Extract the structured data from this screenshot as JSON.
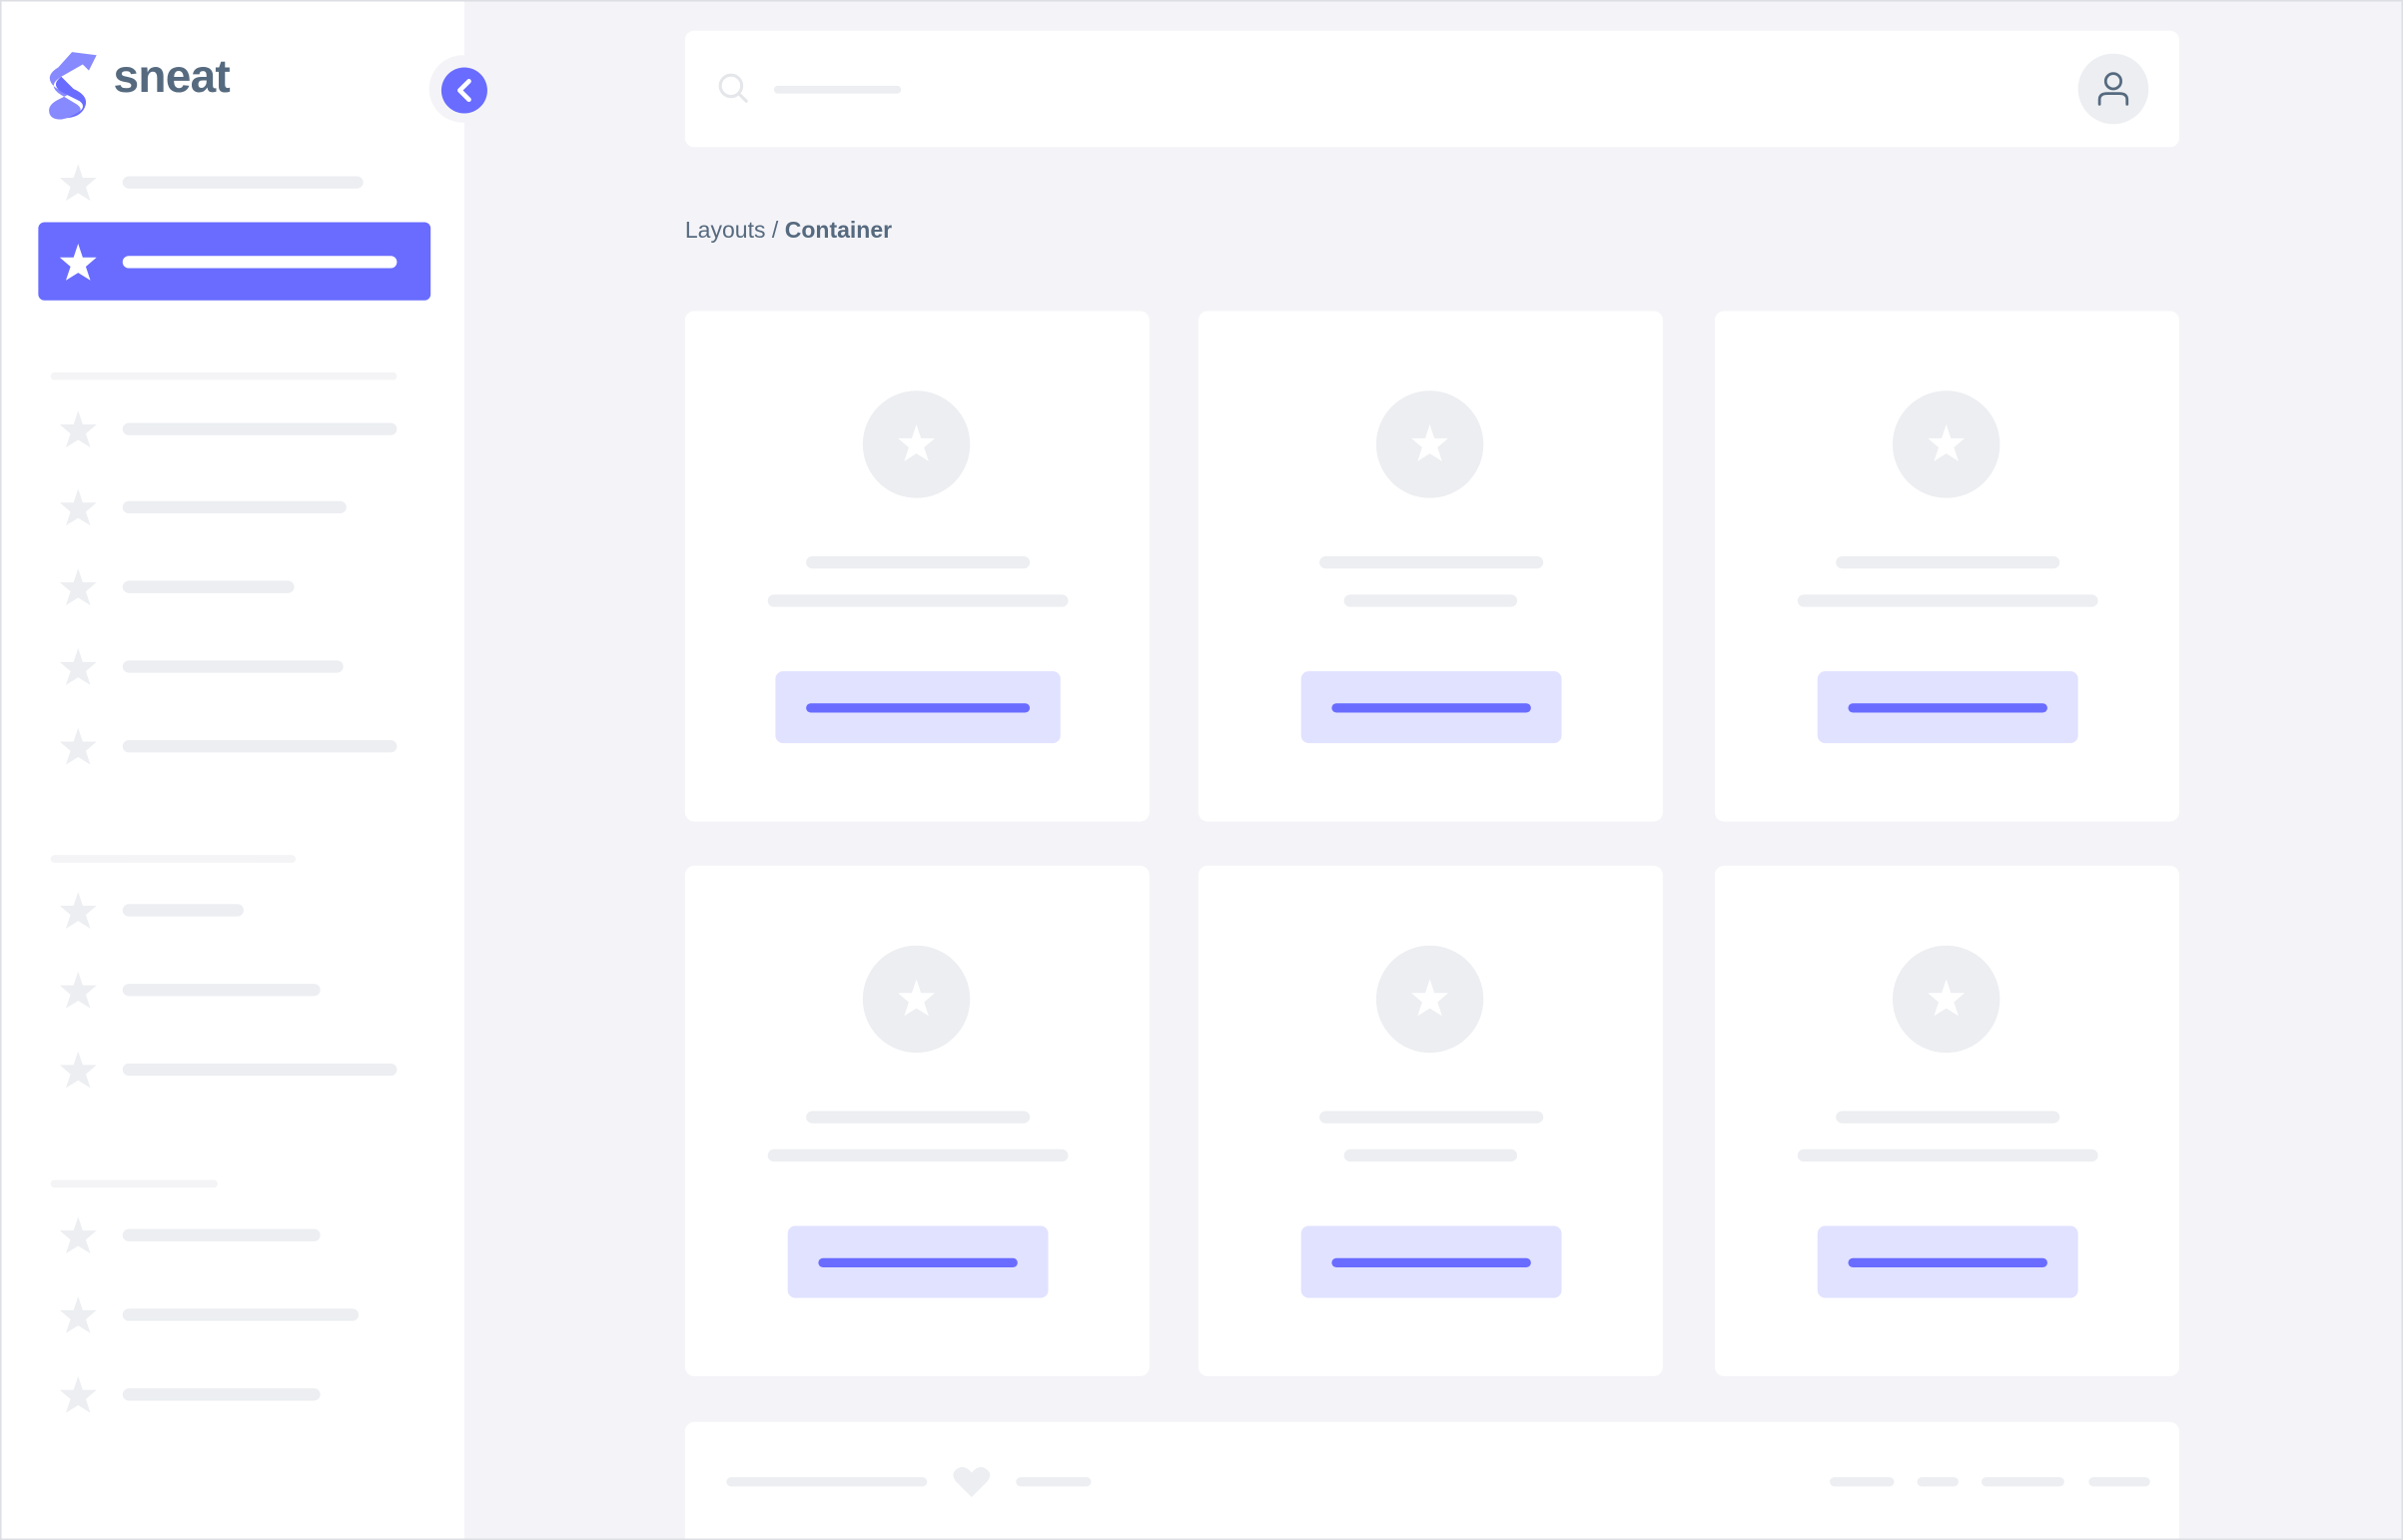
{
  "brand": {
    "name": "sneat",
    "logo_color": "#696cff"
  },
  "colors": {
    "primary": "#696cff",
    "primary_light": "#e1e2ff",
    "background": "#f4f4f8",
    "skeleton": "#eceef1",
    "text": "#566a7f"
  },
  "sidebar": {
    "toggle_icon": "chevron-left-icon",
    "item_icon": "star-icon",
    "active_index": 1,
    "sections": [
      {
        "items": 2
      },
      {
        "items": 5
      },
      {
        "items": 3
      },
      {
        "items": 3
      }
    ]
  },
  "navbar": {
    "search_icon": "search-icon",
    "avatar_icon": "user-icon"
  },
  "breadcrumb": {
    "parent": "Layouts",
    "separator": "/",
    "current": "Container"
  },
  "cards": {
    "count": 6,
    "icon": "star-icon"
  },
  "footer": {
    "icon": "heart-icon"
  }
}
